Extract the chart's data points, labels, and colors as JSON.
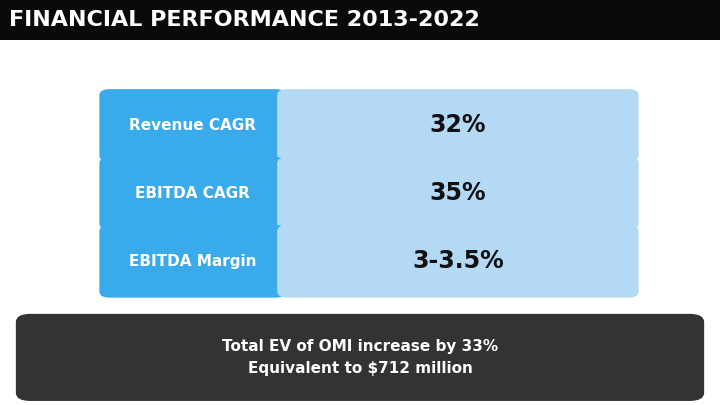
{
  "title": "FINANCIAL PERFORMANCE 2013-2022",
  "title_bg": "#0a0a0a",
  "title_color": "#ffffff",
  "title_fontsize": 16,
  "rows": [
    {
      "label": "Revenue CAGR",
      "value": "32%"
    },
    {
      "label": "EBITDA CAGR",
      "value": "35%"
    },
    {
      "label": "EBITDA Margin",
      "value": "3-3.5%"
    }
  ],
  "label_box_color": "#3aabea",
  "value_box_color": "#b3d9f5",
  "label_text_color": "#ffffff",
  "value_text_color": "#111111",
  "label_fontsize": 11,
  "value_fontsize": 17,
  "footer_text": "Total EV of OMI increase by 33%\nEquivalent to $712 million",
  "footer_bg": "#333333",
  "footer_text_color": "#ffffff",
  "footer_fontsize": 11,
  "bg_color": "#ffffff"
}
